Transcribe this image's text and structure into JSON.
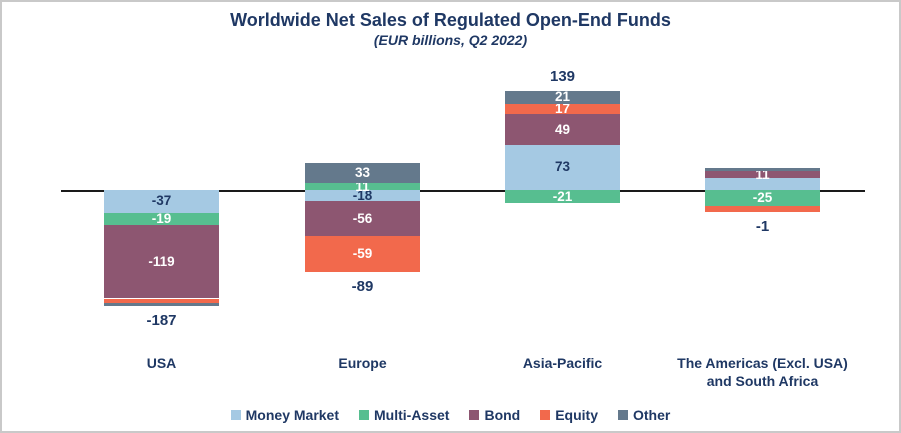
{
  "title": "Worldwide Net Sales of Regulated Open-End Funds",
  "subtitle": "(EUR billions, Q2 2022)",
  "colors": {
    "text_navy": "#1F3864",
    "axis_line": "#1a1a1a",
    "frame_border": "#c9c9c9",
    "background": "#ffffff"
  },
  "chart_data": {
    "type": "bar",
    "stacked": true,
    "unit": "EUR billions",
    "period": "Q2 2022",
    "grid": false,
    "legend_position": "bottom",
    "zero_axis_line": true,
    "categories": [
      "USA",
      "Europe",
      "Asia-Pacific",
      "The Americas (Excl. USA) and South Africa"
    ],
    "series": [
      {
        "name": "Money Market",
        "color": "#A5C9E3",
        "label_color": "#1F3864",
        "values": [
          -37,
          -18,
          73,
          19
        ],
        "labels": [
          "-37",
          "-18",
          "73",
          ""
        ]
      },
      {
        "name": "Multi-Asset",
        "color": "#57BE90",
        "label_color": "#ffffff",
        "values": [
          -19,
          11,
          -21,
          -25
        ],
        "labels": [
          "-19",
          "11",
          "-21",
          "-25"
        ]
      },
      {
        "name": "Bond",
        "color": "#8D5671",
        "label_color": "#ffffff",
        "values": [
          -119,
          -56,
          49,
          11
        ],
        "labels": [
          "-119",
          "-56",
          "49",
          "11"
        ]
      },
      {
        "name": "Equity",
        "color": "#F2694C",
        "label_color": "#ffffff",
        "values": [
          -8,
          -59,
          17,
          -11
        ],
        "labels": [
          "",
          "-59",
          "17",
          ""
        ]
      },
      {
        "name": "Other",
        "color": "#64798C",
        "label_color": "#ffffff",
        "values": [
          -4,
          33,
          21,
          5
        ],
        "labels": [
          "",
          "33",
          "21",
          ""
        ]
      }
    ],
    "totals": [
      -187,
      -89,
      139,
      -1
    ],
    "total_labels": [
      "-187",
      "-89",
      "139",
      "-1"
    ]
  }
}
